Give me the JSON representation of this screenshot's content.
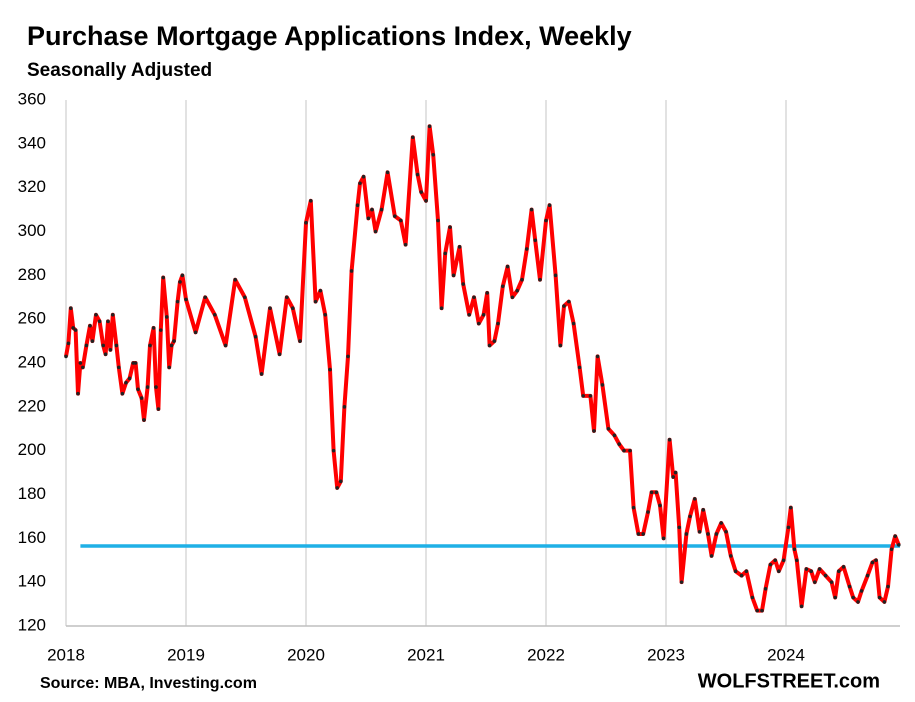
{
  "chart_data": {
    "type": "line",
    "title": "Purchase Mortgage Applications Index, Weekly",
    "subtitle": "Seasonally Adjusted",
    "source": "Source: MBA, Investing.com",
    "brand": "WOLFSTREET.com",
    "xlim": [
      2018,
      2024.95
    ],
    "xticks": [
      2018,
      2019,
      2020,
      2021,
      2022,
      2023,
      2024
    ],
    "ylim": [
      120,
      360
    ],
    "yticks": [
      120,
      140,
      160,
      180,
      200,
      220,
      240,
      260,
      280,
      300,
      320,
      340,
      360
    ],
    "grid": "x",
    "reference_line": {
      "value": 156.5,
      "color": "#1fb0e6",
      "x": [
        2018.12,
        2024.95
      ]
    },
    "series": [
      {
        "name": "Purchase index",
        "color": "#ff0000",
        "marker_color": "#222222",
        "x": [
          2018,
          2018.02,
          2018.04,
          2018.06,
          2018.08,
          2018.1,
          2018.12,
          2018.14,
          2018.17,
          2018.2,
          2018.22,
          2018.25,
          2018.28,
          2018.31,
          2018.33,
          2018.35,
          2018.37,
          2018.39,
          2018.42,
          2018.44,
          2018.47,
          2018.5,
          2018.53,
          2018.56,
          2018.58,
          2018.6,
          2018.63,
          2018.65,
          2018.68,
          2018.7,
          2018.73,
          2018.75,
          2018.77,
          2018.79,
          2018.81,
          2018.84,
          2018.86,
          2018.88,
          2018.9,
          2018.93,
          2018.95,
          2018.97,
          2019,
          2019.08,
          2019.16,
          2019.24,
          2019.33,
          2019.41,
          2019.49,
          2019.58,
          2019.63,
          2019.7,
          2019.78,
          2019.84,
          2019.89,
          2019.95,
          2020,
          2020.04,
          2020.08,
          2020.12,
          2020.16,
          2020.2,
          2020.23,
          2020.26,
          2020.29,
          2020.32,
          2020.35,
          2020.38,
          2020.43,
          2020.45,
          2020.48,
          2020.52,
          2020.55,
          2020.58,
          2020.63,
          2020.68,
          2020.74,
          2020.79,
          2020.83,
          2020.89,
          2020.93,
          2020.96,
          2021,
          2021.03,
          2021.06,
          2021.1,
          2021.13,
          2021.16,
          2021.2,
          2021.23,
          2021.28,
          2021.31,
          2021.36,
          2021.4,
          2021.44,
          2021.48,
          2021.51,
          2021.53,
          2021.57,
          2021.6,
          2021.64,
          2021.68,
          2021.72,
          2021.76,
          2021.8,
          2021.84,
          2021.88,
          2021.91,
          2021.95,
          2022,
          2022.03,
          2022.08,
          2022.12,
          2022.15,
          2022.19,
          2022.23,
          2022.28,
          2022.31,
          2022.37,
          2022.4,
          2022.43,
          2022.47,
          2022.52,
          2022.57,
          2022.61,
          2022.65,
          2022.7,
          2022.73,
          2022.77,
          2022.81,
          2022.85,
          2022.88,
          2022.92,
          2022.95,
          2022.98,
          2023.03,
          2023.06,
          2023.08,
          2023.11,
          2023.13,
          2023.17,
          2023.2,
          2023.24,
          2023.28,
          2023.31,
          2023.35,
          2023.38,
          2023.42,
          2023.46,
          2023.5,
          2023.54,
          2023.58,
          2023.63,
          2023.67,
          2023.72,
          2023.76,
          2023.8,
          2023.83,
          2023.87,
          2023.91,
          2023.94,
          2023.98,
          2024.02,
          2024.04,
          2024.07,
          2024.09,
          2024.13,
          2024.17,
          2024.21,
          2024.24,
          2024.28,
          2024.33,
          2024.38,
          2024.41,
          2024.44,
          2024.48,
          2024.53,
          2024.56,
          2024.6,
          2024.63,
          2024.68,
          2024.72,
          2024.75,
          2024.78,
          2024.82,
          2024.85,
          2024.88,
          2024.91,
          2024.94
        ],
        "values": [
          243,
          249,
          265,
          256,
          255,
          226,
          240,
          238,
          248,
          257,
          250,
          262,
          259,
          248,
          244,
          259,
          246,
          262,
          248,
          238,
          226,
          231,
          233,
          240,
          240,
          228,
          224,
          214,
          229,
          248,
          256,
          229,
          219,
          255,
          279,
          261,
          238,
          248,
          250,
          268,
          277,
          280,
          269,
          254,
          270,
          262,
          248,
          278,
          270,
          252,
          235,
          265,
          244,
          270,
          265,
          250,
          304,
          314,
          268,
          273,
          262,
          237,
          200,
          183,
          186,
          220,
          243,
          282,
          312,
          322,
          325,
          306,
          310,
          300,
          310,
          327,
          307,
          305,
          294,
          343,
          326,
          318,
          314,
          348,
          335,
          305,
          265,
          290,
          302,
          280,
          293,
          276,
          262,
          270,
          258,
          262,
          272,
          248,
          250,
          258,
          275,
          284,
          270,
          273,
          278,
          292,
          310,
          296,
          278,
          305,
          312,
          280,
          248,
          266,
          268,
          258,
          238,
          225,
          225,
          209,
          243,
          230,
          210,
          207,
          203,
          200,
          200,
          174,
          162,
          162,
          172,
          181,
          181,
          175,
          160,
          205,
          188,
          190,
          165,
          140,
          162,
          170,
          178,
          163,
          173,
          162,
          152,
          162,
          167,
          163,
          152,
          145,
          143,
          145,
          133,
          127,
          127,
          137,
          148,
          150,
          145,
          150,
          165,
          174,
          155,
          150,
          129,
          146,
          145,
          140,
          146,
          143,
          140,
          133,
          145,
          147,
          138,
          133,
          131,
          136,
          143,
          149,
          150,
          133,
          131,
          138,
          155,
          161,
          157
        ]
      }
    ]
  }
}
